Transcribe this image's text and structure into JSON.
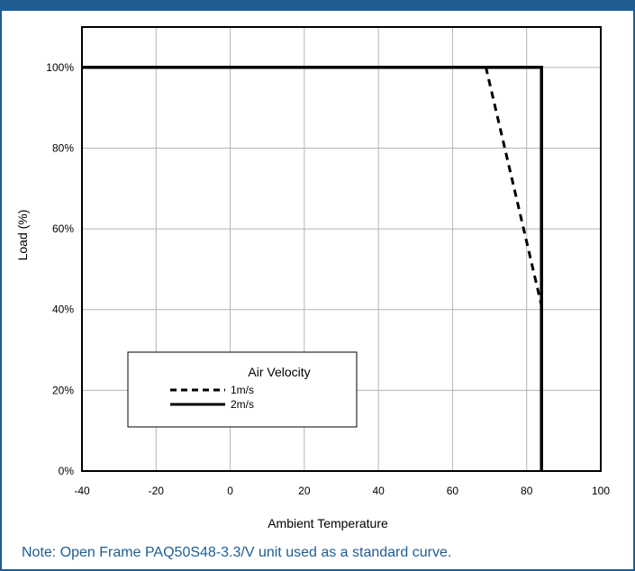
{
  "header": {
    "title": ""
  },
  "note": "Note: Open Frame PAQ50S48-3.3/V unit used as a standard curve.",
  "chart_data": {
    "type": "line",
    "title": "",
    "xlabel": "Ambient Temperature",
    "ylabel": "Load (%)",
    "xlim": [
      -40,
      100
    ],
    "ylim": [
      0,
      110
    ],
    "x_ticks": [
      -40,
      -20,
      0,
      20,
      40,
      60,
      80,
      100
    ],
    "x_tick_labels": [
      "-40",
      "-20",
      "0",
      "20",
      "40",
      "60",
      "80",
      "100"
    ],
    "y_ticks": [
      0,
      20,
      40,
      60,
      80,
      100
    ],
    "y_tick_labels": [
      "0%",
      "20%",
      "40%",
      "60%",
      "80%",
      "100%"
    ],
    "grid": true,
    "legend": {
      "title": "Air Velocity",
      "placement": "bottom-left"
    },
    "series": [
      {
        "name": "1m/s",
        "style": "dashed",
        "color": "#000000",
        "points": [
          [
            -40,
            100
          ],
          [
            69,
            100
          ],
          [
            84,
            41
          ]
        ]
      },
      {
        "name": "2m/s",
        "style": "solid",
        "color": "#000000",
        "points": [
          [
            -40,
            100
          ],
          [
            84,
            100
          ],
          [
            84,
            0
          ]
        ]
      }
    ]
  }
}
